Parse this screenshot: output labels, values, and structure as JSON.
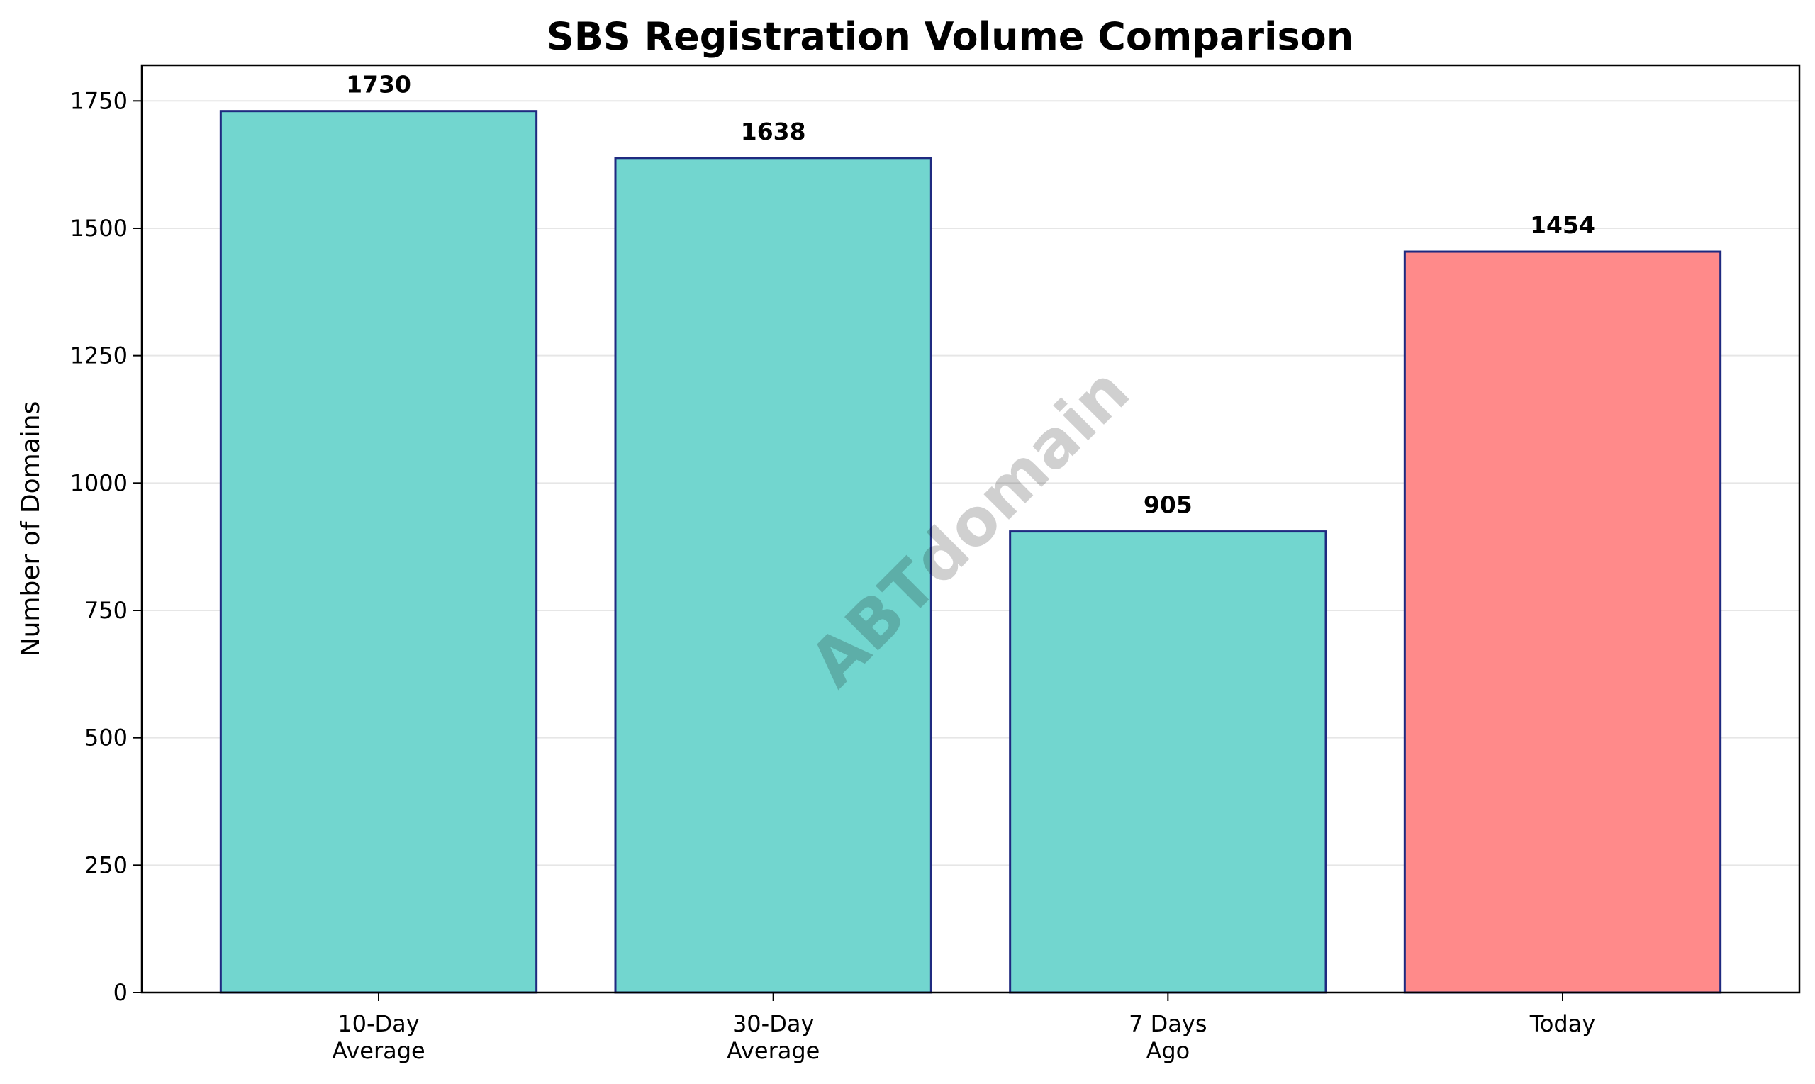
{
  "chart_data": {
    "type": "bar",
    "title": "SBS Registration Volume Comparison",
    "xlabel": "",
    "ylabel": "Number of Domains",
    "categories": [
      [
        "10-Day",
        "Average"
      ],
      [
        "30-Day",
        "Average"
      ],
      [
        "7 Days",
        "Ago"
      ],
      [
        "Today"
      ]
    ],
    "values": [
      1730,
      1638,
      905,
      1454
    ],
    "bar_colors": [
      "#72d6cf",
      "#72d6cf",
      "#72d6cf",
      "#ff8a8a"
    ],
    "edge_color": "#1f2a80",
    "ylim": [
      0,
      1820
    ],
    "yticks": [
      0,
      250,
      500,
      750,
      1000,
      1250,
      1500,
      1750
    ],
    "grid": true,
    "watermark": "ABTdomain"
  }
}
